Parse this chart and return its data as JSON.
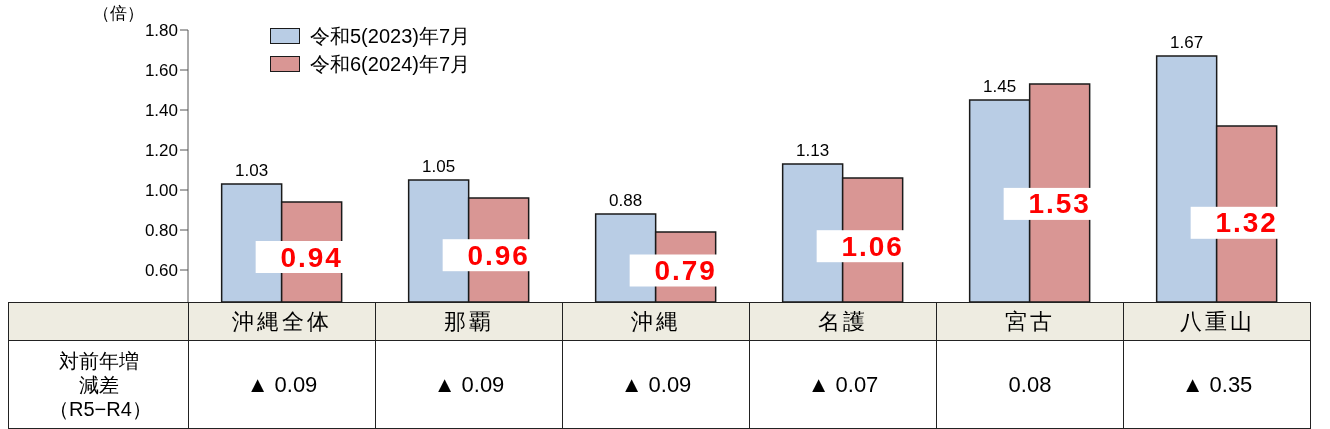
{
  "chart_data": {
    "type": "bar",
    "ylabel": "（倍）",
    "categories": [
      "沖縄全体",
      "那覇",
      "沖縄",
      "名護",
      "宮古",
      "八重山"
    ],
    "series": [
      {
        "name": "令和5(2023)年7月",
        "color": "#b9cde5",
        "values": [
          1.03,
          1.05,
          0.88,
          1.13,
          1.45,
          1.67
        ]
      },
      {
        "name": "令和6(2024)年7月",
        "color": "#d99694",
        "values": [
          0.94,
          0.96,
          0.79,
          1.06,
          1.53,
          1.32
        ]
      }
    ],
    "ylim": [
      0.44,
      1.8
    ],
    "yticks": [
      {
        "value": 0.6,
        "label": "0.60"
      },
      {
        "value": 0.8,
        "label": "0.80"
      },
      {
        "value": 1.0,
        "label": "1.00"
      },
      {
        "value": 1.2,
        "label": "1.20"
      },
      {
        "value": 1.4,
        "label": "1.40"
      },
      {
        "value": 1.6,
        "label": "1.60"
      },
      {
        "value": 1.8,
        "label": "1.80"
      }
    ],
    "legend": "top left",
    "data_labels": true,
    "annotations": [
      "対前年増減差（R5−R4）",
      "▲ 0.09",
      "▲ 0.09",
      "▲ 0.09",
      "▲ 0.07",
      "0.08",
      "▲ 0.35"
    ]
  }
}
